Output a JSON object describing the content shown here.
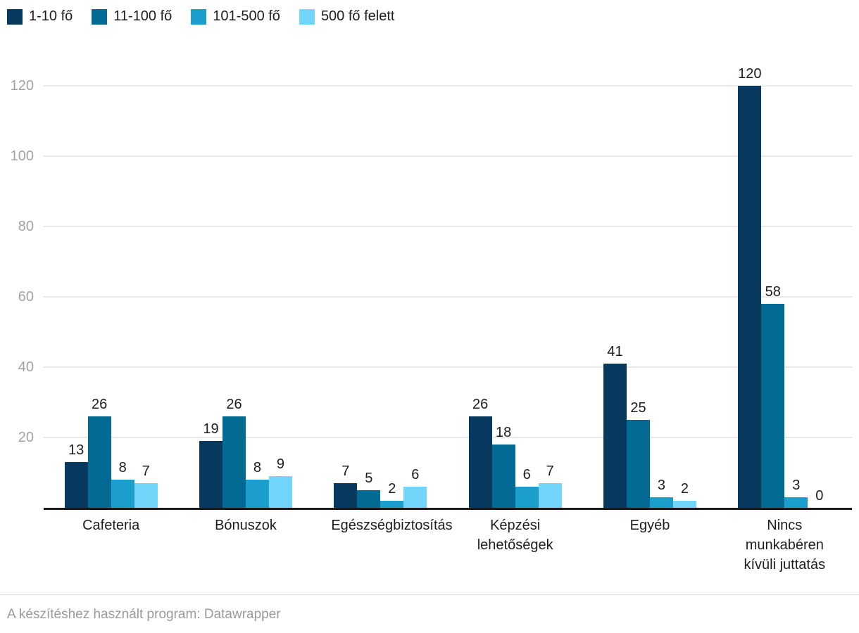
{
  "chart_data": {
    "type": "bar",
    "title": "",
    "categories": [
      "Cafeteria",
      "Bónuszok",
      "Egészségbiztosítás",
      "Képzési lehetőségek",
      "Egyéb",
      "Nincs munkabéren kívüli juttatás"
    ],
    "series": [
      {
        "name": "1-10 fő",
        "color": "#07395f",
        "values": [
          13,
          19,
          7,
          26,
          41,
          120
        ]
      },
      {
        "name": "11-100 fő",
        "color": "#036a94",
        "values": [
          26,
          26,
          5,
          18,
          25,
          58
        ]
      },
      {
        "name": "101-500 fő",
        "color": "#1d9fce",
        "values": [
          8,
          8,
          2,
          6,
          3,
          3
        ]
      },
      {
        "name": "500 fő felett",
        "color": "#72d6fa",
        "values": [
          7,
          9,
          6,
          7,
          2,
          0
        ]
      }
    ],
    "y_ticks": [
      20,
      40,
      60,
      80,
      100,
      120
    ],
    "ylim": [
      0,
      120
    ],
    "grid": true,
    "legend_position": "top",
    "value_labels": true,
    "axis_text_color": "#a2a2a2",
    "gridline_color": "#e9e9e9",
    "baseline_color": "#1a1a1a"
  },
  "footer": {
    "text": "A készítéshez használt program: Datawrapper"
  }
}
